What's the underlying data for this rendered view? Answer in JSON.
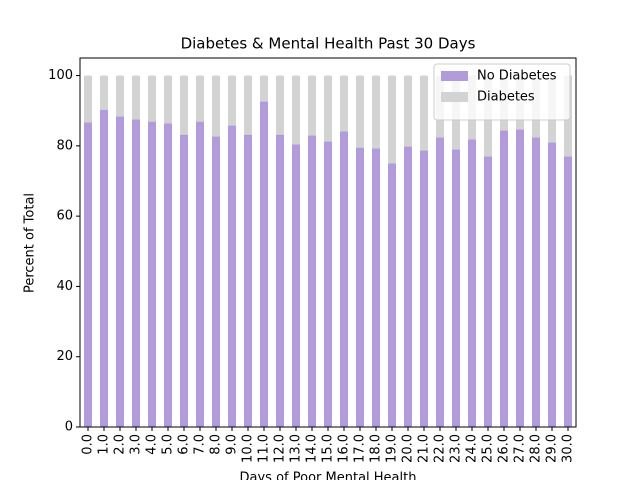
{
  "chart_data": {
    "type": "stacked_bar",
    "title": "Diabetes & Mental Health Past 30 Days",
    "x_label": "Days of Poor Mental Health",
    "y_label": "Percent of Total",
    "categories": [
      "0.0",
      "1.0",
      "2.0",
      "3.0",
      "4.0",
      "5.0",
      "6.0",
      "7.0",
      "8.0",
      "9.0",
      "10.0",
      "11.0",
      "12.0",
      "13.0",
      "14.0",
      "15.0",
      "16.0",
      "17.0",
      "18.0",
      "19.0",
      "20.0",
      "21.0",
      "22.0",
      "23.0",
      "24.0",
      "25.0",
      "26.0",
      "27.0",
      "28.0",
      "29.0",
      "30.0"
    ],
    "series": [
      {
        "name": "No Diabetes",
        "color": "#b19cd9",
        "values": [
          86.7,
          90.3,
          88.4,
          87.5,
          86.9,
          86.4,
          83.2,
          86.9,
          82.7,
          85.8,
          83.2,
          92.6,
          83.2,
          80.4,
          83.0,
          81.3,
          84.1,
          79.5,
          79.3,
          75.0,
          79.8,
          78.7,
          82.4,
          79.0,
          81.8,
          77.0,
          84.4,
          84.7,
          82.4,
          81.0,
          77.0
        ]
      },
      {
        "name": "Diabetes",
        "color": "#d3d3d3",
        "values": [
          13.3,
          9.7,
          11.6,
          12.5,
          13.1,
          13.6,
          16.8,
          13.1,
          17.3,
          14.2,
          16.8,
          7.4,
          16.8,
          19.6,
          17.0,
          18.7,
          15.9,
          20.5,
          20.7,
          25.0,
          20.2,
          21.3,
          17.6,
          21.0,
          18.2,
          23.0,
          15.6,
          15.3,
          17.6,
          19.0,
          23.0
        ]
      }
    ],
    "ylim": [
      0,
      105
    ],
    "yticks": [
      0,
      20,
      40,
      60,
      80,
      100
    ],
    "legend": "upper right"
  }
}
